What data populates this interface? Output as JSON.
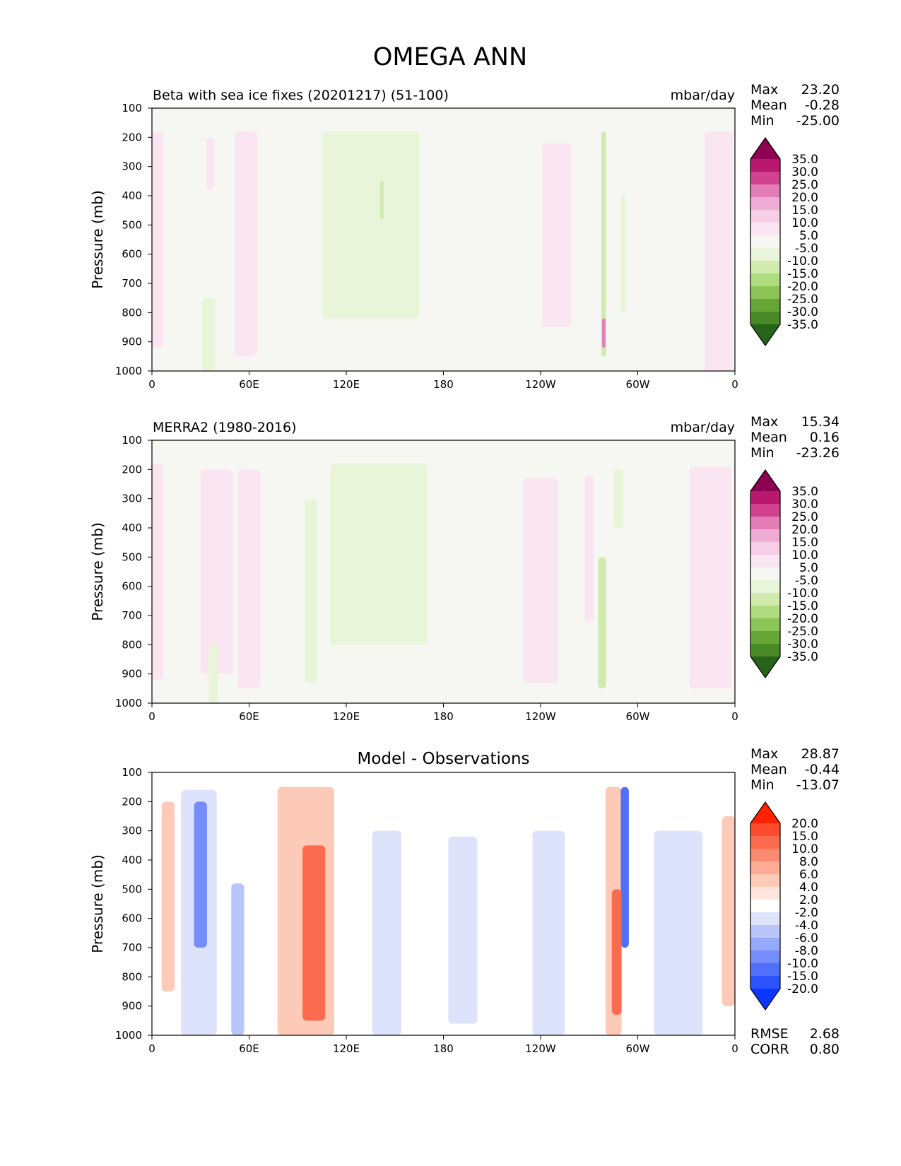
{
  "figure_title": "OMEGA ANN",
  "chart_data": [
    {
      "type": "heatmap",
      "title": "Beta with sea ice fixes (20201217) (51-100)",
      "units": "mbar/day",
      "xlabel": "",
      "ylabel": "Pressure (mb)",
      "x_tick_labels": [
        "0",
        "60E",
        "120E",
        "180",
        "120W",
        "60W",
        "0"
      ],
      "y_tick_labels": [
        "100",
        "200",
        "300",
        "400",
        "500",
        "600",
        "700",
        "800",
        "900",
        "1000"
      ],
      "xlim": [
        0,
        360
      ],
      "ylim": [
        1000,
        100
      ],
      "stats": [
        {
          "label": "Max",
          "value": "23.20"
        },
        {
          "label": "Mean",
          "value": "-0.28"
        },
        {
          "label": "Min",
          "value": "-25.00"
        }
      ],
      "colorbar_levels": [
        "35.0",
        "30.0",
        "25.0",
        "20.0",
        "15.0",
        "10.0",
        "5.0",
        "-5.0",
        "-10.0",
        "-15.0",
        "-20.0",
        "-25.0",
        "-30.0",
        "-35.0"
      ],
      "colorbar_colors": [
        "#8e0152",
        "#b8196f",
        "#d2418d",
        "#e27db6",
        "#efadd5",
        "#f6cee5",
        "#fae6f1",
        "#f6f6f3",
        "#e9f5d9",
        "#d1ebae",
        "#b0dc80",
        "#8cc455",
        "#67a635",
        "#4a8a26",
        "#276419"
      ],
      "features": [
        {
          "lon": 3,
          "width": 8,
          "p_top": 180,
          "p_bottom": 920,
          "value": 8
        },
        {
          "lon": 36,
          "width": 5,
          "p_top": 200,
          "p_bottom": 380,
          "value": 7
        },
        {
          "lon": 58,
          "width": 14,
          "p_top": 180,
          "p_bottom": 950,
          "value": 6
        },
        {
          "lon": 35,
          "width": 8,
          "p_top": 750,
          "p_bottom": 1000,
          "value": -7
        },
        {
          "lon": 135,
          "width": 60,
          "p_top": 180,
          "p_bottom": 820,
          "value": -7
        },
        {
          "lon": 142,
          "width": 2,
          "p_top": 350,
          "p_bottom": 480,
          "value": -14
        },
        {
          "lon": 250,
          "width": 18,
          "p_top": 220,
          "p_bottom": 850,
          "value": 7
        },
        {
          "lon": 279,
          "width": 3,
          "p_top": 180,
          "p_bottom": 950,
          "value": -12
        },
        {
          "lon": 279,
          "width": 2,
          "p_top": 820,
          "p_bottom": 920,
          "value": 22
        },
        {
          "lon": 291,
          "width": 3,
          "p_top": 400,
          "p_bottom": 800,
          "value": -7
        },
        {
          "lon": 350,
          "width": 18,
          "p_top": 180,
          "p_bottom": 1000,
          "value": 8
        }
      ]
    },
    {
      "type": "heatmap",
      "title": "MERRA2 (1980-2016)",
      "units": "mbar/day",
      "xlabel": "",
      "ylabel": "Pressure (mb)",
      "x_tick_labels": [
        "0",
        "60E",
        "120E",
        "180",
        "120W",
        "60W",
        "0"
      ],
      "y_tick_labels": [
        "100",
        "200",
        "300",
        "400",
        "500",
        "600",
        "700",
        "800",
        "900",
        "1000"
      ],
      "xlim": [
        0,
        360
      ],
      "ylim": [
        1000,
        100
      ],
      "stats": [
        {
          "label": "Max",
          "value": "15.34"
        },
        {
          "label": "Mean",
          "value": "0.16"
        },
        {
          "label": "Min",
          "value": "-23.26"
        }
      ],
      "colorbar_levels": [
        "35.0",
        "30.0",
        "25.0",
        "20.0",
        "15.0",
        "10.0",
        "5.0",
        "-5.0",
        "-10.0",
        "-15.0",
        "-20.0",
        "-25.0",
        "-30.0",
        "-35.0"
      ],
      "colorbar_colors": [
        "#8e0152",
        "#b8196f",
        "#d2418d",
        "#e27db6",
        "#efadd5",
        "#f6cee5",
        "#fae6f1",
        "#f6f6f3",
        "#e9f5d9",
        "#d1ebae",
        "#b0dc80",
        "#8cc455",
        "#67a635",
        "#4a8a26",
        "#276419"
      ],
      "features": [
        {
          "lon": 3,
          "width": 8,
          "p_top": 180,
          "p_bottom": 920,
          "value": 7
        },
        {
          "lon": 40,
          "width": 20,
          "p_top": 200,
          "p_bottom": 900,
          "value": 6
        },
        {
          "lon": 60,
          "width": 14,
          "p_top": 200,
          "p_bottom": 950,
          "value": 7
        },
        {
          "lon": 38,
          "width": 6,
          "p_top": 800,
          "p_bottom": 1000,
          "value": -8
        },
        {
          "lon": 98,
          "width": 8,
          "p_top": 300,
          "p_bottom": 930,
          "value": -7
        },
        {
          "lon": 140,
          "width": 60,
          "p_top": 180,
          "p_bottom": 800,
          "value": -6
        },
        {
          "lon": 240,
          "width": 22,
          "p_top": 230,
          "p_bottom": 930,
          "value": 6
        },
        {
          "lon": 278,
          "width": 5,
          "p_top": 500,
          "p_bottom": 950,
          "value": -13
        },
        {
          "lon": 270,
          "width": 6,
          "p_top": 220,
          "p_bottom": 720,
          "value": 7
        },
        {
          "lon": 288,
          "width": 6,
          "p_top": 200,
          "p_bottom": 400,
          "value": -6
        },
        {
          "lon": 345,
          "width": 26,
          "p_top": 190,
          "p_bottom": 950,
          "value": 7
        }
      ]
    },
    {
      "type": "heatmap",
      "title": "Model - Observations",
      "units": "",
      "xlabel": "",
      "ylabel": "Pressure (mb)",
      "x_tick_labels": [
        "0",
        "60E",
        "120E",
        "180",
        "120W",
        "60W",
        "0"
      ],
      "y_tick_labels": [
        "100",
        "200",
        "300",
        "400",
        "500",
        "600",
        "700",
        "800",
        "900",
        "1000"
      ],
      "xlim": [
        0,
        360
      ],
      "ylim": [
        1000,
        100
      ],
      "stats": [
        {
          "label": "Max",
          "value": "28.87"
        },
        {
          "label": "Mean",
          "value": "-0.44"
        },
        {
          "label": "Min",
          "value": "-13.07"
        }
      ],
      "extra_stats": [
        {
          "label": "RMSE",
          "value": "2.68"
        },
        {
          "label": "CORR",
          "value": "0.80"
        }
      ],
      "colorbar_levels": [
        "20.0",
        "15.0",
        "10.0",
        "8.0",
        "6.0",
        "4.0",
        "2.0",
        "-2.0",
        "-4.0",
        "-6.0",
        "-8.0",
        "-10.0",
        "-15.0",
        "-20.0"
      ],
      "colorbar_colors": [
        "#ff2200",
        "#fe4b2e",
        "#fb6b4f",
        "#fb8b70",
        "#fcab94",
        "#fdcab8",
        "#fee6dd",
        "#ffffff",
        "#dde3fb",
        "#bac6fa",
        "#96a9fa",
        "#748dfb",
        "#5070fb",
        "#2c53fd",
        "#0a36fe"
      ],
      "features": [
        {
          "lon": 10,
          "width": 8,
          "p_top": 200,
          "p_bottom": 850,
          "value": 4
        },
        {
          "lon": 29,
          "width": 22,
          "p_top": 160,
          "p_bottom": 1000,
          "value": -4
        },
        {
          "lon": 30,
          "width": 8,
          "p_top": 200,
          "p_bottom": 700,
          "value": -10
        },
        {
          "lon": 53,
          "width": 8,
          "p_top": 480,
          "p_bottom": 1000,
          "value": -6
        },
        {
          "lon": 95,
          "width": 35,
          "p_top": 150,
          "p_bottom": 1000,
          "value": 5
        },
        {
          "lon": 100,
          "width": 14,
          "p_top": 350,
          "p_bottom": 950,
          "value": 12
        },
        {
          "lon": 145,
          "width": 18,
          "p_top": 300,
          "p_bottom": 1000,
          "value": -3
        },
        {
          "lon": 192,
          "width": 18,
          "p_top": 320,
          "p_bottom": 960,
          "value": -3
        },
        {
          "lon": 245,
          "width": 20,
          "p_top": 300,
          "p_bottom": 1000,
          "value": -3
        },
        {
          "lon": 285,
          "width": 10,
          "p_top": 150,
          "p_bottom": 1000,
          "value": 5
        },
        {
          "lon": 292,
          "width": 5,
          "p_top": 150,
          "p_bottom": 700,
          "value": -12
        },
        {
          "lon": 287,
          "width": 6,
          "p_top": 500,
          "p_bottom": 930,
          "value": 12
        },
        {
          "lon": 325,
          "width": 30,
          "p_top": 300,
          "p_bottom": 1000,
          "value": -3
        },
        {
          "lon": 356,
          "width": 8,
          "p_top": 250,
          "p_bottom": 900,
          "value": 5
        }
      ]
    }
  ]
}
